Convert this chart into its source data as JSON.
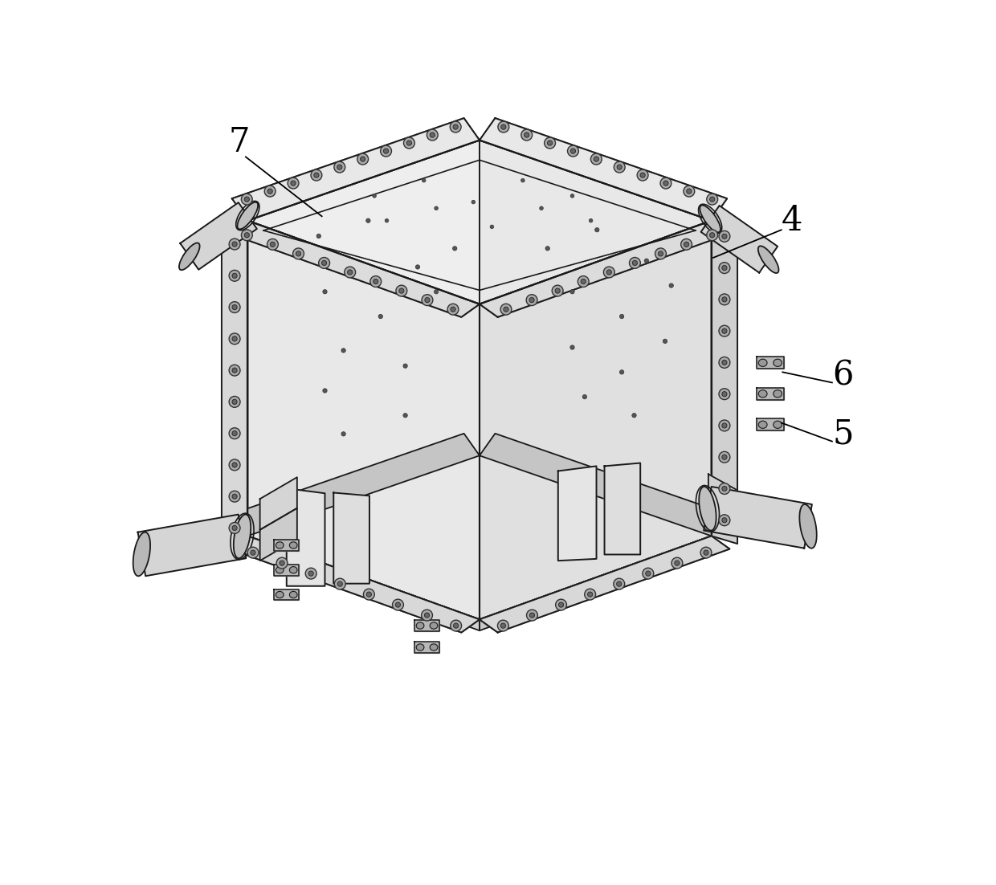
{
  "bg": "#ffffff",
  "lc": "#1a1a1a",
  "c_light": "#f0f0f0",
  "c_mid": "#e0e0e0",
  "c_dark": "#c8c8c8",
  "c_darker": "#b0b0b0",
  "c_frame": "#d8d8d8",
  "c_bolt": "#888888",
  "c_bolt_inner": "#555555",
  "c_top_face": "#f5f5f5",
  "figsize": [
    12.4,
    11.02
  ],
  "dpi": 100
}
